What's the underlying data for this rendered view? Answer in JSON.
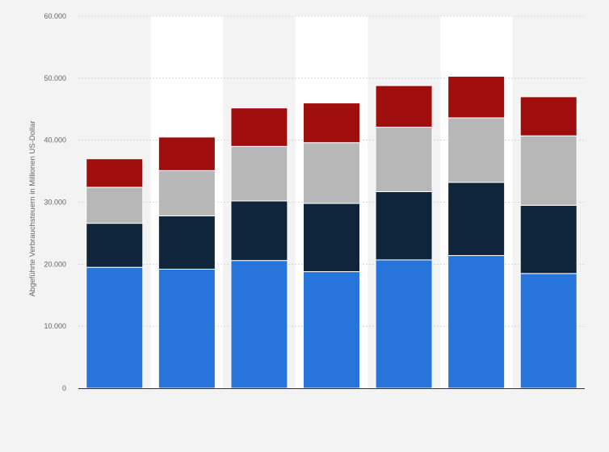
{
  "colors": {
    "background": "#f3f3f3",
    "plot_band": "#ffffff",
    "gridline": "#cfcfcf",
    "axis_line": "#333333",
    "text": "#666666"
  },
  "chart_data": {
    "type": "bar",
    "stacked": true,
    "title": "",
    "xlabel": "",
    "ylabel": "Abgeführte Verbrauchsteuern in Millionen US-Dollar",
    "ylim": [
      0,
      60000
    ],
    "y_ticks": [
      0,
      10000,
      20000,
      30000,
      40000,
      50000,
      60000
    ],
    "y_tick_labels": [
      "0",
      "10.000",
      "20.000",
      "30.000",
      "40.000",
      "50.000",
      "60.000"
    ],
    "grid": true,
    "categories": [
      "",
      "",
      "",
      "",
      "",
      "",
      ""
    ],
    "series": [
      {
        "color": "#2775da",
        "values": [
          19500,
          19200,
          20600,
          18800,
          20700,
          21400,
          18500
        ]
      },
      {
        "color": "#0f253c",
        "values": [
          7100,
          8600,
          9600,
          11000,
          11000,
          11800,
          11000
        ]
      },
      {
        "color": "#b7b7b7",
        "values": [
          5800,
          7300,
          8800,
          9800,
          10400,
          10400,
          11200
        ]
      },
      {
        "color": "#a00d0d",
        "values": [
          4600,
          5400,
          6200,
          6400,
          6700,
          6700,
          6300
        ]
      }
    ]
  }
}
